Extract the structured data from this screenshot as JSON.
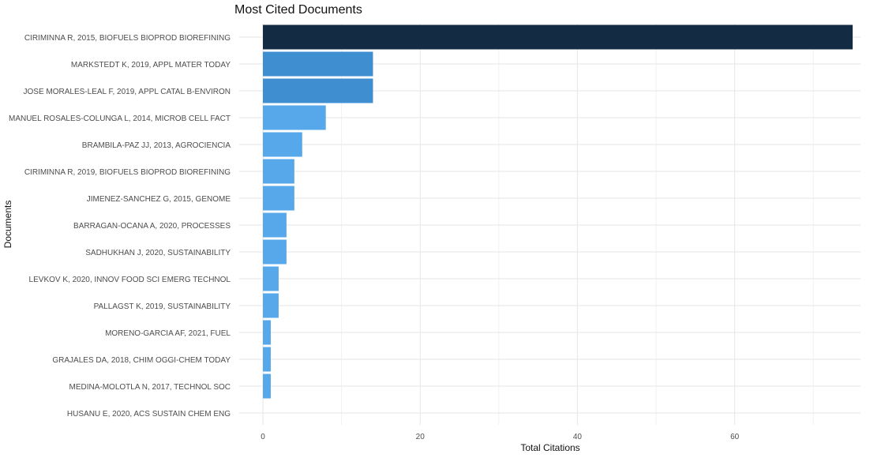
{
  "chart_data": {
    "type": "bar",
    "orientation": "horizontal",
    "title": "Most Cited Documents",
    "xlabel": "Total Citations",
    "ylabel": "Documents",
    "xlim": [
      0,
      76
    ],
    "xticks": [
      0,
      20,
      40,
      60
    ],
    "grid": true,
    "legend": "none",
    "categories": [
      "CIRIMINNA R, 2015, BIOFUELS BIOPROD BIOREFINING",
      "MARKSTEDT K, 2019, APPL MATER TODAY",
      "JOSE MORALES-LEAL F, 2019, APPL CATAL B-ENVIRON",
      "MANUEL ROSALES-COLUNGA L, 2014, MICROB CELL FACT",
      "BRAMBILA-PAZ JJ, 2013, AGROCIENCIA",
      "CIRIMINNA R, 2019, BIOFUELS BIOPROD BIOREFINING",
      "JIMENEZ-SANCHEZ G, 2015, GENOME",
      "BARRAGAN-OCANA A, 2020, PROCESSES",
      "SADHUKHAN J, 2020, SUSTAINABILITY",
      "LEVKOV K, 2020, INNOV FOOD SCI EMERG TECHNOL",
      "PALLAGST K, 2019, SUSTAINABILITY",
      "MORENO-GARCIA AF, 2021, FUEL",
      "GRAJALES DA, 2018, CHIM OGGI-CHEM TODAY",
      "MEDINA-MOLOTLA N, 2017, TECHNOL SOC",
      "HUSANU E, 2020, ACS SUSTAIN CHEM ENG"
    ],
    "values": [
      75,
      14,
      14,
      8,
      5,
      4,
      4,
      3,
      3,
      2,
      2,
      1,
      1,
      1,
      0
    ],
    "colors": {
      "max": "#132b43",
      "mid": "#3e8ed0",
      "low": "#56a8ea",
      "grid": "#e6e6e6",
      "text": "#4d4d4d"
    }
  }
}
